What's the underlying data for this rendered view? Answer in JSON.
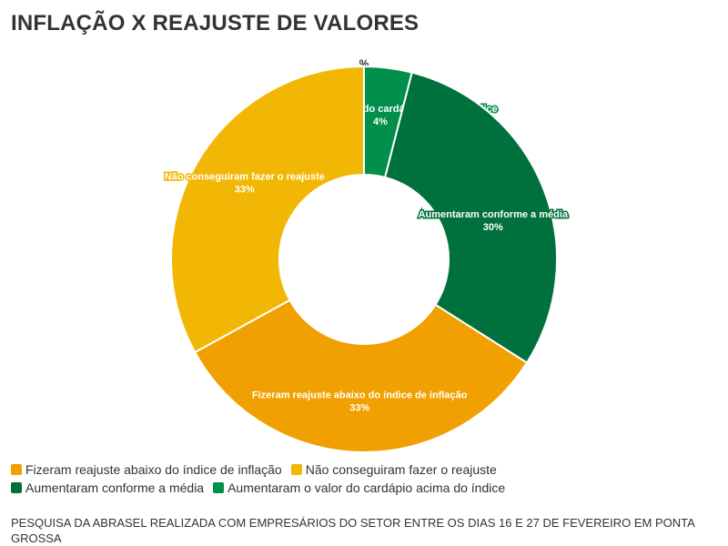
{
  "title": "INFLAÇÃO X REAJUSTE DE VALORES",
  "source": "PESQUISA DA ABRASEL REALIZADA COM EMPRESÁRIOS DO SETOR ENTRE OS DIAS 16 E 27 DE FEVEREIRO EM PONTA GROSSA",
  "chart_data": {
    "type": "pie",
    "donut": true,
    "unit_label": "%",
    "slices": [
      {
        "label": "Aumentaram o valor do cardápio acima do índice",
        "value": 4,
        "value_label": "4%",
        "color": "#00904c"
      },
      {
        "label": "Aumentaram conforme a média",
        "value": 30,
        "value_label": "30%",
        "color": "#00703c"
      },
      {
        "label": "Fizeram reajuste abaixo do índice de inflação",
        "value": 33,
        "value_label": "33%",
        "color": "#f0a000"
      },
      {
        "label": "Não conseguiram fazer o reajuste",
        "value": 33,
        "value_label": "33%",
        "color": "#f2b705"
      }
    ],
    "legend": [
      [
        "Fizeram reajuste abaixo do índice de inflação",
        "Não conseguiram fazer o reajuste"
      ],
      [
        "Aumentaram conforme a média",
        "Aumentaram o valor do cardápio acima do índice"
      ]
    ],
    "legend_colors": [
      [
        "#f0a000",
        "#f2b705"
      ],
      [
        "#00703c",
        "#00904c"
      ]
    ],
    "legend_position": "bottom"
  }
}
